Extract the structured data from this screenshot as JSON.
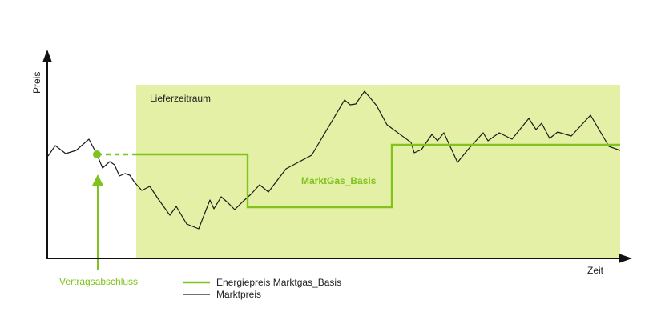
{
  "labels": {
    "y_axis": "Preis",
    "x_axis": "Zeit",
    "delivery_period": "Lieferzeitraum",
    "product": "MarktGas_Basis",
    "contract_event": "Vertragsabschluss"
  },
  "legend": {
    "items": [
      {
        "label": "Energiepreis Marktgas_Basis",
        "color": "#7fc31c"
      },
      {
        "label": "Marktpreis",
        "color": "#1a1a1a"
      }
    ]
  },
  "colors": {
    "green": "#7fc31c",
    "delivery_fill": "#e4f0a6",
    "axis": "#111111",
    "market_line": "#1a1a1a"
  },
  "icons": {
    "axis_arrows": "arrow-head-icon",
    "contract_marker": "dot-icon"
  }
}
